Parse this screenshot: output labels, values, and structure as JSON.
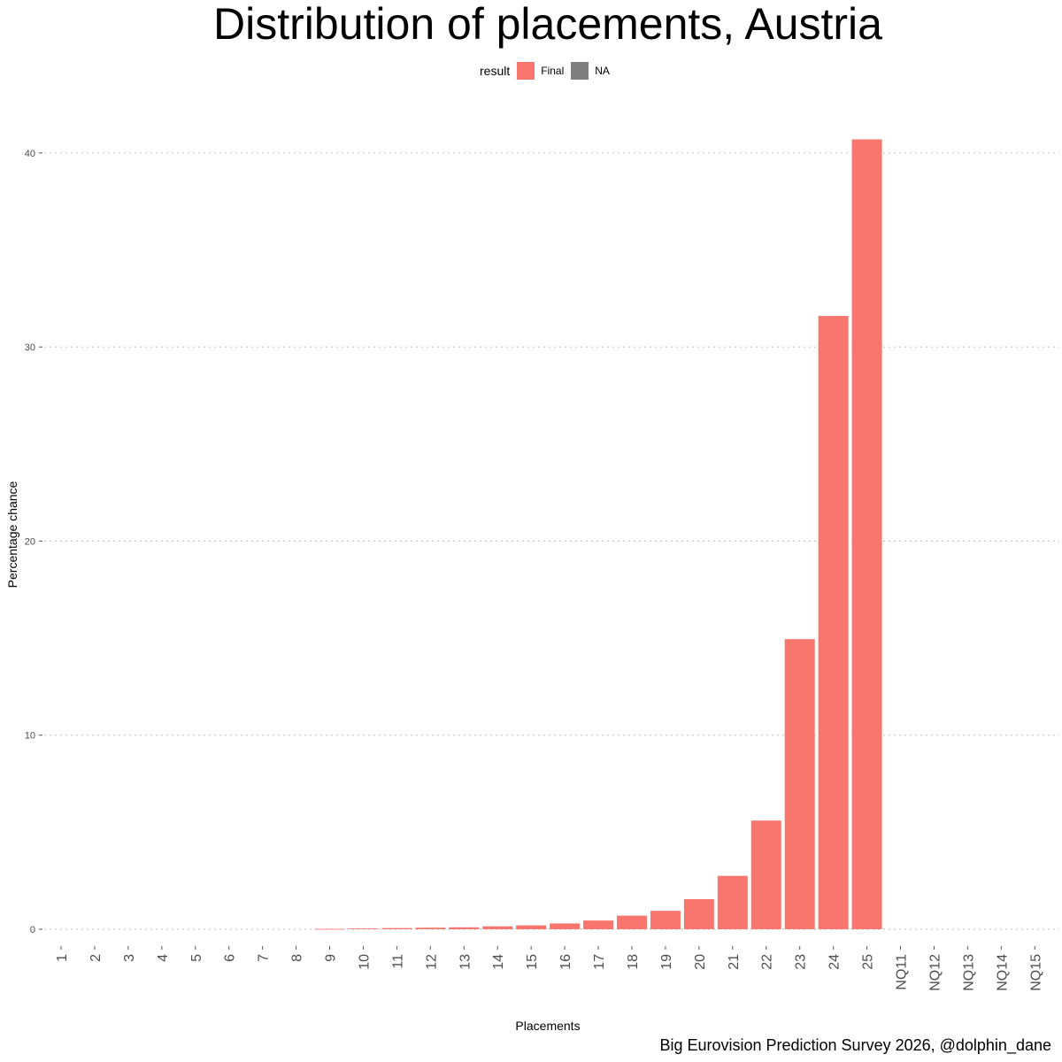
{
  "chart_data": {
    "type": "bar",
    "title": "Distribution of placements, Austria",
    "xlabel": "Placements",
    "ylabel": "Percentage chance",
    "caption": "Big Eurovision Prediction Survey 2026, @dolphin_dane",
    "legend": {
      "title": "result",
      "placement": "top",
      "items": [
        {
          "label": "Final",
          "color": "#F8766D"
        },
        {
          "label": "NA",
          "color": "#7F7F7F"
        }
      ]
    },
    "categories": [
      "1",
      "2",
      "3",
      "4",
      "5",
      "6",
      "7",
      "8",
      "9",
      "10",
      "11",
      "12",
      "13",
      "14",
      "15",
      "16",
      "17",
      "18",
      "19",
      "20",
      "21",
      "22",
      "23",
      "24",
      "25",
      "NQ11",
      "NQ12",
      "NQ13",
      "NQ14",
      "NQ15"
    ],
    "series": [
      {
        "name": "Final",
        "color": "#F8766D",
        "values": [
          0,
          0,
          0,
          0,
          0,
          0,
          0,
          0,
          0.02,
          0.04,
          0.06,
          0.08,
          0.1,
          0.15,
          0.2,
          0.3,
          0.45,
          0.7,
          0.95,
          1.55,
          2.75,
          5.6,
          14.95,
          31.6,
          40.7,
          0,
          0,
          0,
          0,
          0
        ]
      }
    ],
    "yticks": [
      0,
      10,
      20,
      30,
      40
    ],
    "ylim": [
      -0.6,
      42.5
    ],
    "grid": {
      "horizontal": "dotted",
      "vertical": false
    }
  }
}
